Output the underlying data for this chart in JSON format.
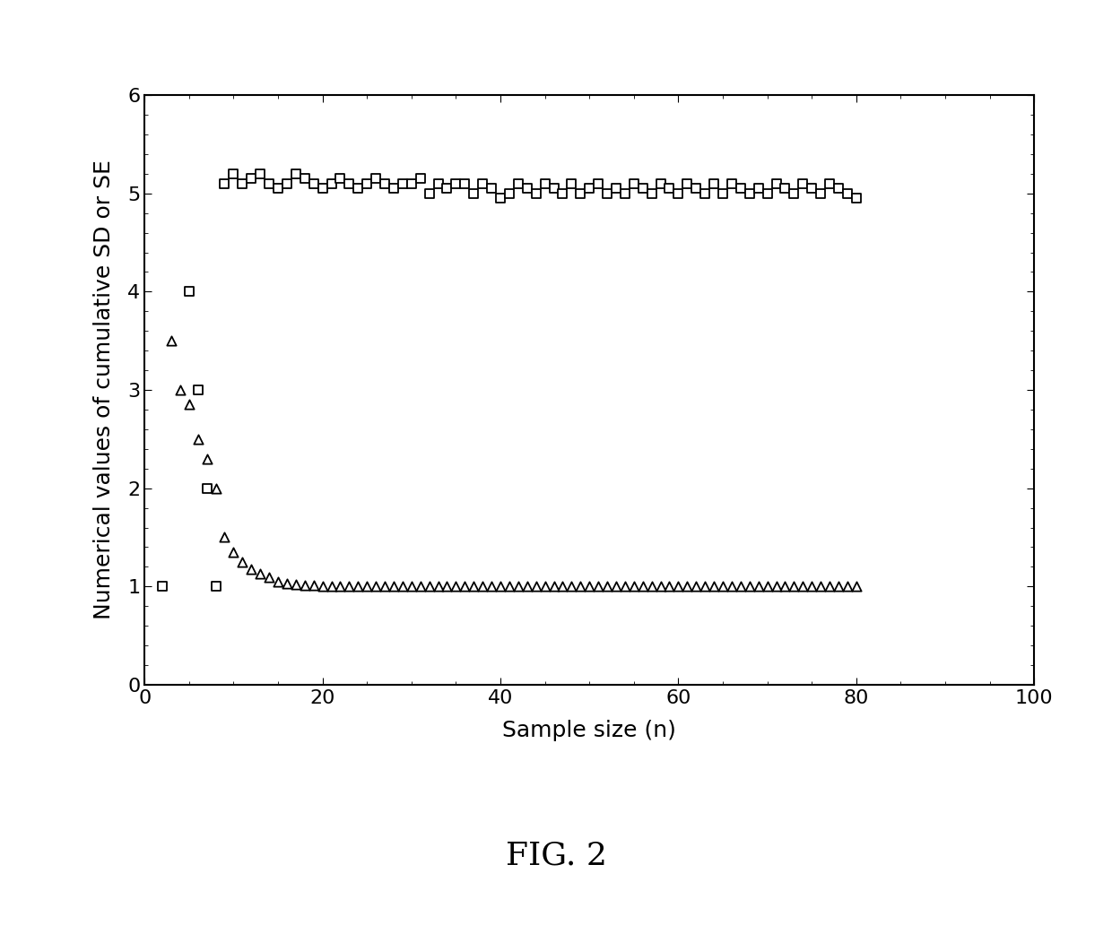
{
  "xlabel": "Sample size (n)",
  "ylabel": "Numerical values of cumulative SD or SE",
  "xlim": [
    0,
    100
  ],
  "ylim": [
    0,
    6
  ],
  "xticks": [
    0,
    20,
    40,
    60,
    80,
    100
  ],
  "yticks": [
    0,
    1,
    2,
    3,
    4,
    5,
    6
  ],
  "square_x": [
    2,
    5,
    6,
    7,
    8,
    9,
    10,
    11,
    12,
    13,
    14,
    15,
    16,
    17,
    18,
    19,
    20,
    21,
    22,
    23,
    24,
    25,
    26,
    27,
    28,
    29,
    30,
    31,
    32,
    33,
    34,
    35,
    36,
    37,
    38,
    39,
    40,
    41,
    42,
    43,
    44,
    45,
    46,
    47,
    48,
    49,
    50,
    51,
    52,
    53,
    54,
    55,
    56,
    57,
    58,
    59,
    60,
    61,
    62,
    63,
    64,
    65,
    66,
    67,
    68,
    69,
    70,
    71,
    72,
    73,
    74,
    75,
    76,
    77,
    78,
    79,
    80
  ],
  "square_y": [
    1.0,
    4.0,
    3.0,
    2.0,
    1.0,
    5.1,
    5.2,
    5.1,
    5.15,
    5.2,
    5.1,
    5.05,
    5.1,
    5.2,
    5.15,
    5.1,
    5.05,
    5.1,
    5.15,
    5.1,
    5.05,
    5.1,
    5.15,
    5.1,
    5.05,
    5.1,
    5.1,
    5.15,
    5.0,
    5.1,
    5.05,
    5.1,
    5.1,
    5.0,
    5.1,
    5.05,
    4.95,
    5.0,
    5.1,
    5.05,
    5.0,
    5.1,
    5.05,
    5.0,
    5.1,
    5.0,
    5.05,
    5.1,
    5.0,
    5.05,
    5.0,
    5.1,
    5.05,
    5.0,
    5.1,
    5.05,
    5.0,
    5.1,
    5.05,
    5.0,
    5.1,
    5.0,
    5.1,
    5.05,
    5.0,
    5.05,
    5.0,
    5.1,
    5.05,
    5.0,
    5.1,
    5.05,
    5.0,
    5.1,
    5.05,
    5.0,
    4.95
  ],
  "triangle_x": [
    3,
    4,
    5,
    6,
    7,
    8,
    9,
    10,
    11,
    12,
    13,
    14,
    15,
    16,
    17,
    18,
    19,
    20,
    21,
    22,
    23,
    24,
    25,
    26,
    27,
    28,
    29,
    30,
    31,
    32,
    33,
    34,
    35,
    36,
    37,
    38,
    39,
    40,
    41,
    42,
    43,
    44,
    45,
    46,
    47,
    48,
    49,
    50,
    51,
    52,
    53,
    54,
    55,
    56,
    57,
    58,
    59,
    60,
    61,
    62,
    63,
    64,
    65,
    66,
    67,
    68,
    69,
    70,
    71,
    72,
    73,
    74,
    75,
    76,
    77,
    78,
    79,
    80
  ],
  "triangle_y": [
    3.5,
    3.0,
    2.85,
    2.5,
    2.3,
    2.0,
    1.5,
    1.35,
    1.25,
    1.18,
    1.13,
    1.09,
    1.05,
    1.03,
    1.02,
    1.01,
    1.01,
    1.005,
    1.0,
    1.0,
    1.0,
    1.0,
    1.0,
    1.0,
    1.0,
    1.0,
    1.0,
    1.0,
    1.0,
    1.0,
    1.0,
    1.0,
    1.0,
    1.0,
    1.0,
    1.0,
    1.0,
    1.0,
    1.0,
    1.0,
    1.0,
    1.0,
    1.0,
    1.0,
    1.0,
    1.0,
    1.0,
    1.0,
    1.0,
    1.0,
    1.0,
    1.0,
    1.0,
    1.0,
    1.0,
    1.0,
    1.0,
    1.0,
    1.0,
    1.0,
    1.0,
    1.0,
    1.0,
    1.0,
    1.0,
    1.0,
    1.0,
    1.0,
    1.0,
    1.0,
    1.0,
    1.0,
    1.0,
    1.0,
    1.0,
    1.0,
    1.0,
    1.0
  ],
  "marker_color": "black",
  "background_color": "white",
  "fig_label": "FIG. 2",
  "fig_label_fontsize": 26,
  "axis_fontsize": 18,
  "tick_fontsize": 16,
  "square_markersize": 55,
  "triangle_markersize": 55
}
